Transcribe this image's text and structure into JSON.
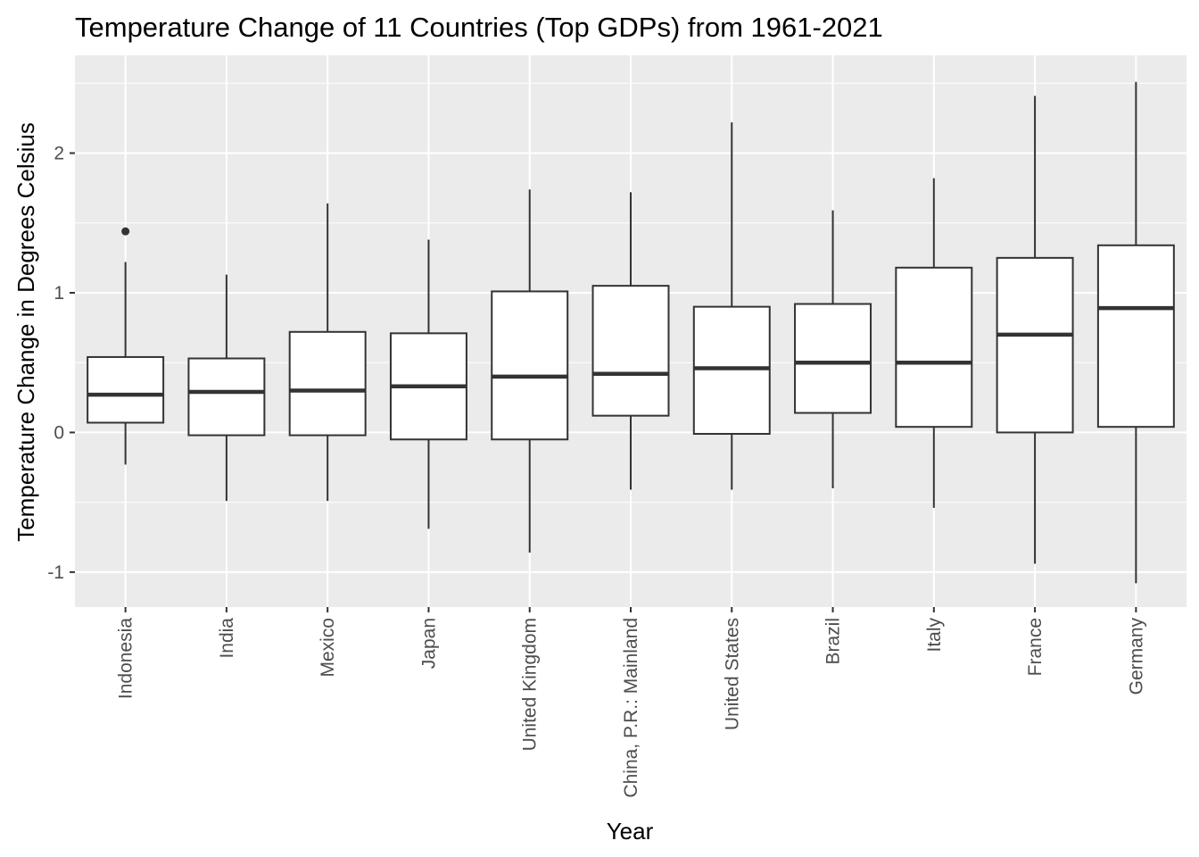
{
  "chart_data": {
    "type": "boxplot",
    "title": "Temperature Change of 11 Countries (Top GDPs) from 1961-2021",
    "xlabel": "Year",
    "ylabel": "Temperature Change in Degrees Celsius",
    "ylim": [
      -1.25,
      2.7
    ],
    "y_ticks": [
      -1,
      0,
      1,
      2
    ],
    "y_tick_labels": [
      "-1",
      "0",
      "1",
      "2"
    ],
    "grid": true,
    "colors": {
      "panel_background": "#ebebeb",
      "grid_major": "#ffffff",
      "box_fill": "#ffffff",
      "box_line": "#333333"
    },
    "categories": [
      "Indonesia",
      "India",
      "Mexico",
      "Japan",
      "United Kingdom",
      "China, P.R.: Mainland",
      "United States",
      "Brazil",
      "Italy",
      "France",
      "Germany"
    ],
    "boxes": [
      {
        "lower_whisker": -0.23,
        "q1": 0.07,
        "median": 0.27,
        "q3": 0.54,
        "upper_whisker": 1.22,
        "outliers": [
          1.44
        ]
      },
      {
        "lower_whisker": -0.49,
        "q1": -0.02,
        "median": 0.29,
        "q3": 0.53,
        "upper_whisker": 1.13,
        "outliers": []
      },
      {
        "lower_whisker": -0.49,
        "q1": -0.02,
        "median": 0.3,
        "q3": 0.72,
        "upper_whisker": 1.64,
        "outliers": []
      },
      {
        "lower_whisker": -0.69,
        "q1": -0.05,
        "median": 0.33,
        "q3": 0.71,
        "upper_whisker": 1.38,
        "outliers": []
      },
      {
        "lower_whisker": -0.86,
        "q1": -0.05,
        "median": 0.4,
        "q3": 1.01,
        "upper_whisker": 1.74,
        "outliers": []
      },
      {
        "lower_whisker": -0.41,
        "q1": 0.12,
        "median": 0.42,
        "q3": 1.05,
        "upper_whisker": 1.72,
        "outliers": []
      },
      {
        "lower_whisker": -0.41,
        "q1": -0.01,
        "median": 0.46,
        "q3": 0.9,
        "upper_whisker": 2.22,
        "outliers": []
      },
      {
        "lower_whisker": -0.4,
        "q1": 0.14,
        "median": 0.5,
        "q3": 0.92,
        "upper_whisker": 1.59,
        "outliers": []
      },
      {
        "lower_whisker": -0.54,
        "q1": 0.04,
        "median": 0.5,
        "q3": 1.18,
        "upper_whisker": 1.82,
        "outliers": []
      },
      {
        "lower_whisker": -0.94,
        "q1": 0.0,
        "median": 0.7,
        "q3": 1.25,
        "upper_whisker": 2.41,
        "outliers": []
      },
      {
        "lower_whisker": -1.08,
        "q1": 0.04,
        "median": 0.89,
        "q3": 1.34,
        "upper_whisker": 2.51,
        "outliers": []
      }
    ]
  }
}
